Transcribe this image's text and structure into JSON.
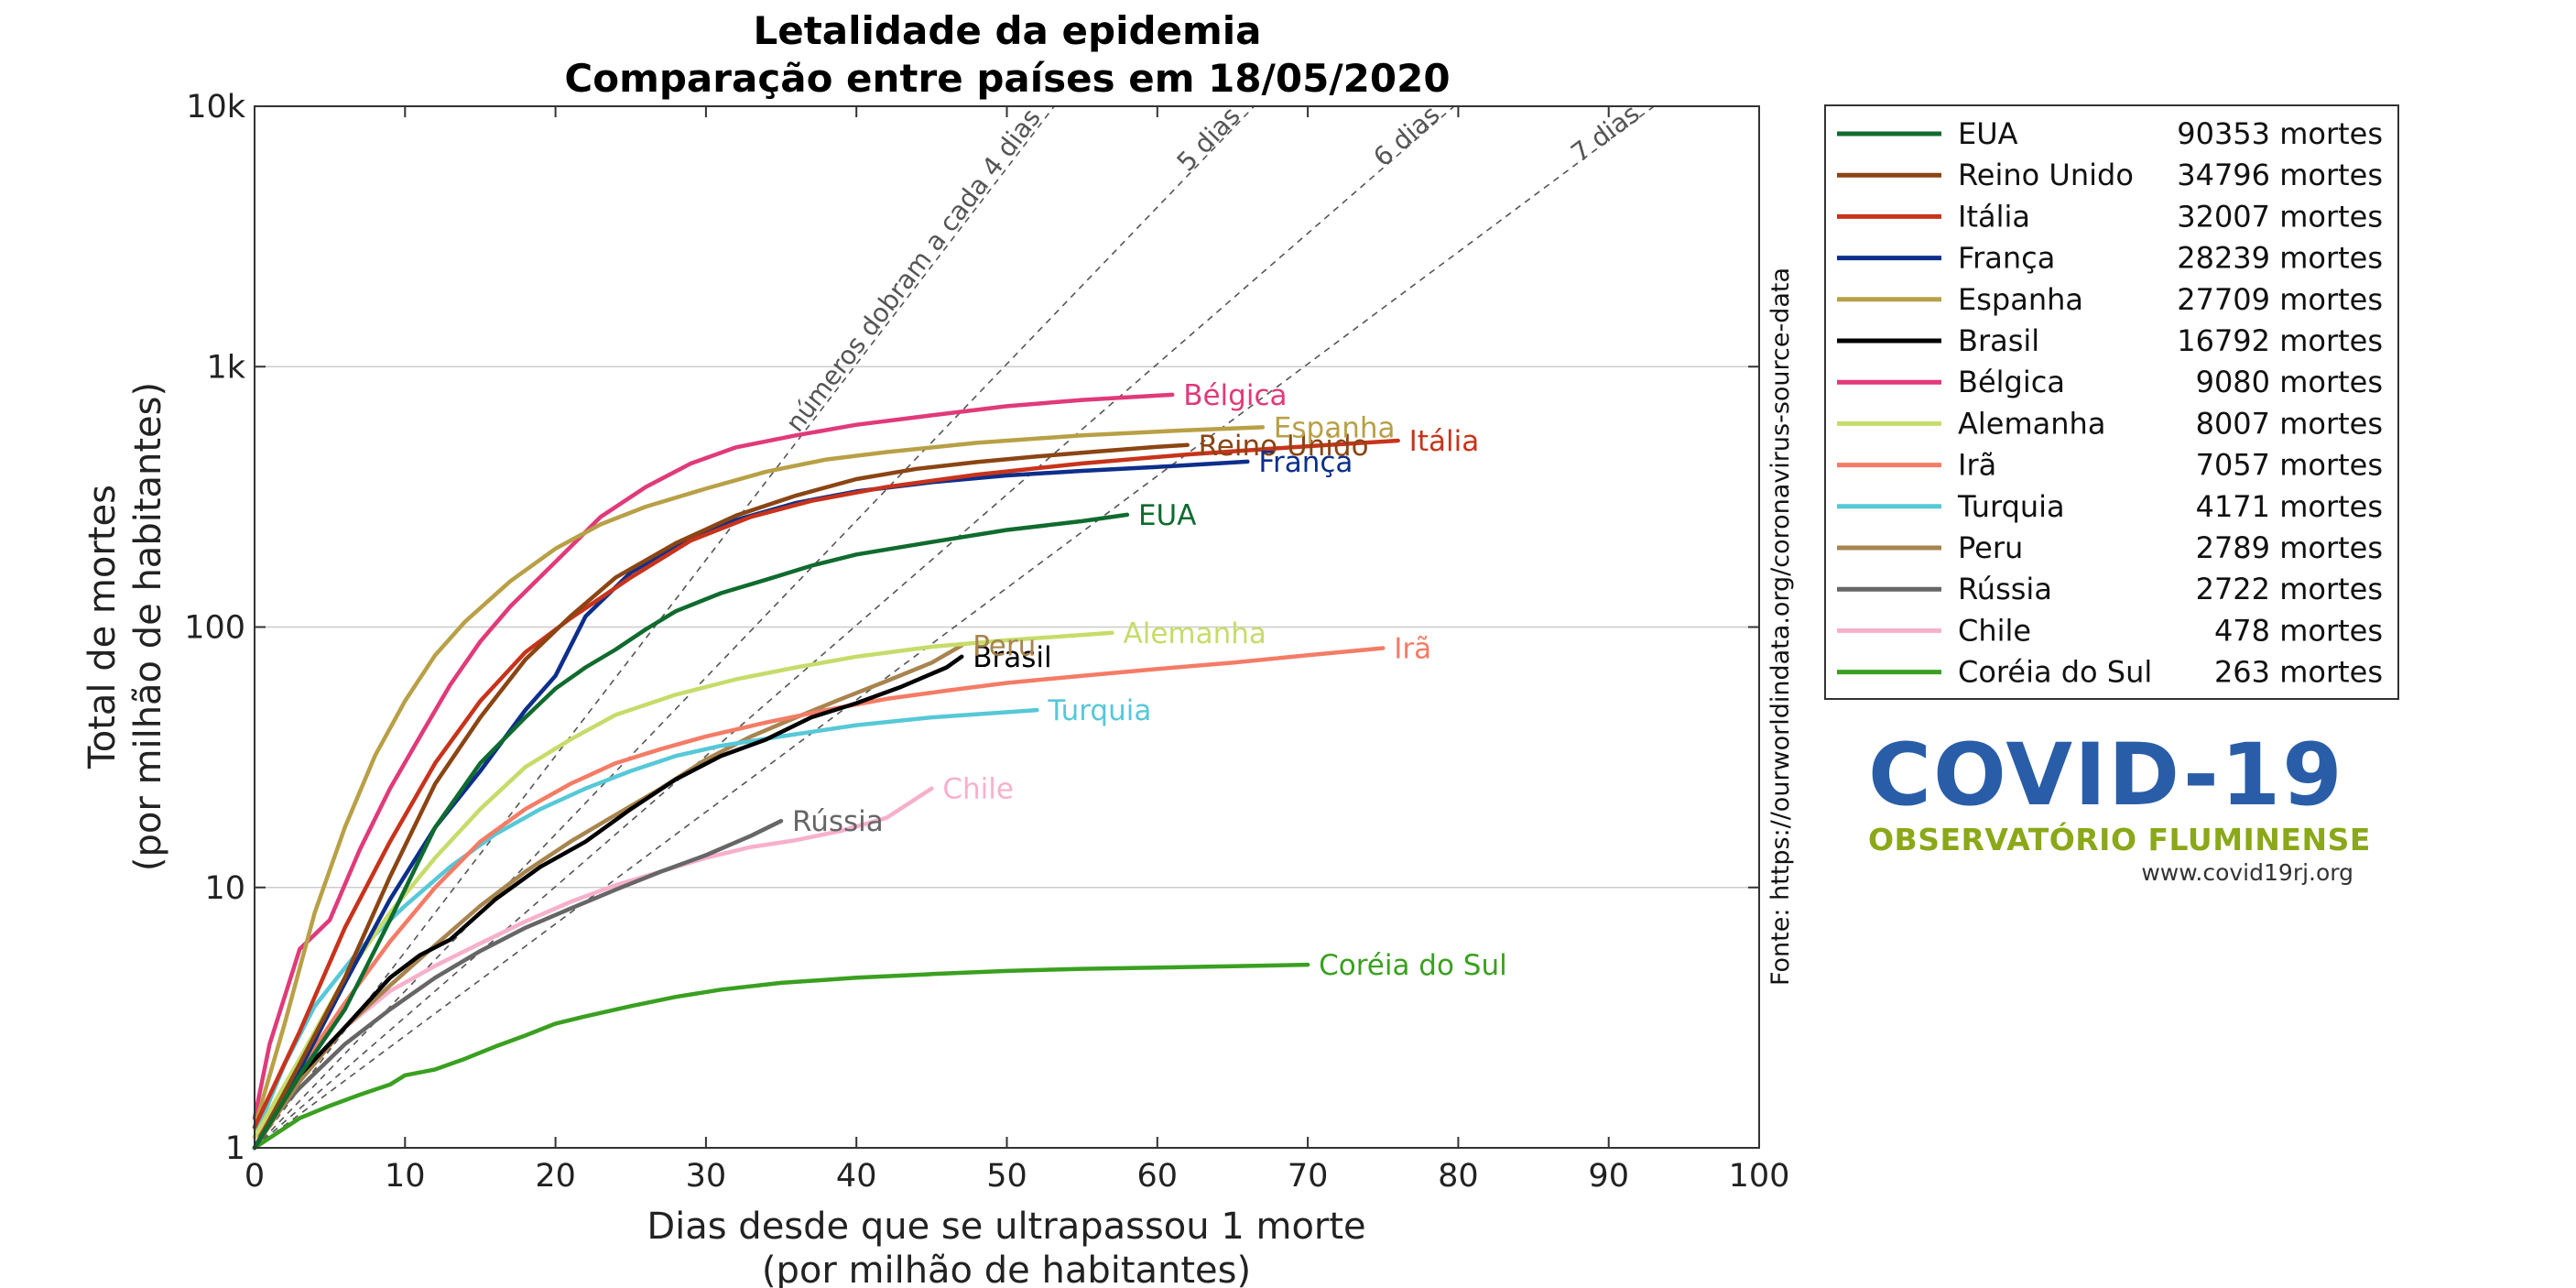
{
  "chart_data": {
    "type": "line",
    "title": "Letalidade da epidemia",
    "subtitle": "Comparação entre países em 18/05/2020",
    "xlabel": "Dias desde que se ultrapassou 1 morte",
    "xlabel2": "(por milhão de habitantes)",
    "ylabel": "Total de mortes",
    "ylabel2": "(por milhão de habitantes)",
    "xlim": [
      0,
      100
    ],
    "ylim": [
      1,
      10000
    ],
    "yscale": "log",
    "x_ticks": [
      0,
      10,
      20,
      30,
      40,
      50,
      60,
      70,
      80,
      90,
      100
    ],
    "y_ticks": [
      {
        "value": 1,
        "label": "1"
      },
      {
        "value": 10,
        "label": "10"
      },
      {
        "value": 100,
        "label": "100"
      },
      {
        "value": 1000,
        "label": "1k"
      },
      {
        "value": 10000,
        "label": "10k"
      }
    ],
    "grid": "horizontal",
    "legend_position": "right",
    "source": "Fonte: https://ourworldindata.org/coronavirus-source-data",
    "reference_lines": [
      {
        "label": "números dobram a cada 4 dias",
        "doubling_days": 4
      },
      {
        "label": "5 dias",
        "doubling_days": 5
      },
      {
        "label": "6 dias",
        "doubling_days": 6
      },
      {
        "label": "7 dias",
        "doubling_days": 7
      }
    ],
    "series": [
      {
        "name": "EUA",
        "deaths": "90353 mortes",
        "color": "#0f6b2e",
        "label": "EUA",
        "points": [
          [
            0,
            1
          ],
          [
            3,
            1.9
          ],
          [
            6,
            3.4
          ],
          [
            9,
            7.5
          ],
          [
            12,
            17
          ],
          [
            15,
            30
          ],
          [
            18,
            45
          ],
          [
            20,
            58
          ],
          [
            22,
            70
          ],
          [
            24,
            82
          ],
          [
            26,
            98
          ],
          [
            28,
            115
          ],
          [
            31,
            135
          ],
          [
            34,
            152
          ],
          [
            37,
            172
          ],
          [
            40,
            190
          ],
          [
            45,
            212
          ],
          [
            50,
            236
          ],
          [
            55,
            255
          ],
          [
            58,
            270
          ]
        ]
      },
      {
        "name": "Reino Unido",
        "deaths": "34796 mortes",
        "color": "#8b4513",
        "label": "Reino Unido",
        "points": [
          [
            0,
            1
          ],
          [
            3,
            2.1
          ],
          [
            6,
            4.5
          ],
          [
            9,
            11
          ],
          [
            12,
            25
          ],
          [
            15,
            45
          ],
          [
            18,
            75
          ],
          [
            21,
            110
          ],
          [
            24,
            155
          ],
          [
            28,
            210
          ],
          [
            32,
            268
          ],
          [
            36,
            320
          ],
          [
            40,
            370
          ],
          [
            44,
            405
          ],
          [
            48,
            430
          ],
          [
            52,
            452
          ],
          [
            56,
            472
          ],
          [
            60,
            492
          ],
          [
            62,
            500
          ]
        ]
      },
      {
        "name": "Itália",
        "deaths": "32007 mortes",
        "color": "#c8331b",
        "label": "Itália",
        "points": [
          [
            0,
            1.2
          ],
          [
            3,
            2.8
          ],
          [
            6,
            7
          ],
          [
            9,
            15
          ],
          [
            12,
            30
          ],
          [
            15,
            52
          ],
          [
            18,
            80
          ],
          [
            21,
            108
          ],
          [
            25,
            155
          ],
          [
            29,
            215
          ],
          [
            33,
            265
          ],
          [
            37,
            305
          ],
          [
            42,
            345
          ],
          [
            48,
            385
          ],
          [
            55,
            425
          ],
          [
            62,
            460
          ],
          [
            70,
            495
          ],
          [
            76,
            520
          ]
        ]
      },
      {
        "name": "França",
        "deaths": "28239 mortes",
        "color": "#0d2f8c",
        "label": "França",
        "points": [
          [
            0,
            1
          ],
          [
            3,
            2
          ],
          [
            6,
            4.3
          ],
          [
            9,
            9
          ],
          [
            12,
            17
          ],
          [
            15,
            28
          ],
          [
            18,
            48
          ],
          [
            20,
            65
          ],
          [
            22,
            110
          ],
          [
            25,
            162
          ],
          [
            28,
            205
          ],
          [
            32,
            258
          ],
          [
            36,
            300
          ],
          [
            40,
            332
          ],
          [
            45,
            360
          ],
          [
            50,
            382
          ],
          [
            55,
            398
          ],
          [
            60,
            412
          ],
          [
            66,
            432
          ]
        ]
      },
      {
        "name": "Espanha",
        "deaths": "27709 mortes",
        "color": "#b8a046",
        "label": "Espanha",
        "points": [
          [
            0,
            1.2
          ],
          [
            2,
            3
          ],
          [
            4,
            8
          ],
          [
            6,
            17
          ],
          [
            8,
            32
          ],
          [
            10,
            52
          ],
          [
            12,
            78
          ],
          [
            14,
            105
          ],
          [
            17,
            150
          ],
          [
            20,
            200
          ],
          [
            23,
            248
          ],
          [
            26,
            290
          ],
          [
            30,
            340
          ],
          [
            34,
            395
          ],
          [
            38,
            440
          ],
          [
            42,
            470
          ],
          [
            48,
            510
          ],
          [
            55,
            545
          ],
          [
            62,
            570
          ],
          [
            67,
            585
          ]
        ]
      },
      {
        "name": "Brasil",
        "deaths": "16792 mortes",
        "color": "#000000",
        "label": "Brasil",
        "points": [
          [
            0,
            1
          ],
          [
            3,
            1.9
          ],
          [
            6,
            2.9
          ],
          [
            9,
            4.5
          ],
          [
            11,
            5.5
          ],
          [
            13,
            6.3
          ],
          [
            16,
            9
          ],
          [
            19,
            12
          ],
          [
            22,
            15
          ],
          [
            25,
            20
          ],
          [
            28,
            26
          ],
          [
            31,
            32
          ],
          [
            34,
            37
          ],
          [
            37,
            45
          ],
          [
            40,
            51
          ],
          [
            43,
            59
          ],
          [
            46,
            70
          ],
          [
            47,
            77
          ]
        ]
      },
      {
        "name": "Bélgica",
        "deaths": "9080 mortes",
        "color": "#e03a7a",
        "label": "Bélgica",
        "points": [
          [
            0,
            1.3
          ],
          [
            1,
            2.5
          ],
          [
            3,
            5.8
          ],
          [
            5,
            7.5
          ],
          [
            7,
            14
          ],
          [
            9,
            24
          ],
          [
            11,
            38
          ],
          [
            13,
            60
          ],
          [
            15,
            88
          ],
          [
            17,
            120
          ],
          [
            20,
            178
          ],
          [
            23,
            265
          ],
          [
            26,
            345
          ],
          [
            29,
            425
          ],
          [
            32,
            490
          ],
          [
            36,
            545
          ],
          [
            40,
            598
          ],
          [
            45,
            650
          ],
          [
            50,
            705
          ],
          [
            55,
            745
          ],
          [
            61,
            780
          ]
        ]
      },
      {
        "name": "Alemanha",
        "deaths": "8007 mortes",
        "color": "#c6dc6a",
        "label": "Alemanha",
        "points": [
          [
            0,
            1.1
          ],
          [
            3,
            2.2
          ],
          [
            6,
            4.5
          ],
          [
            9,
            8
          ],
          [
            12,
            13
          ],
          [
            15,
            20
          ],
          [
            18,
            29
          ],
          [
            21,
            37
          ],
          [
            24,
            46
          ],
          [
            28,
            55
          ],
          [
            32,
            63
          ],
          [
            36,
            70
          ],
          [
            40,
            77
          ],
          [
            45,
            84
          ],
          [
            50,
            89
          ],
          [
            57,
            95
          ]
        ]
      },
      {
        "name": "Irã",
        "deaths": "7057 mortes",
        "color": "#f47c66",
        "label": "Irã",
        "points": [
          [
            0,
            1.1
          ],
          [
            3,
            2
          ],
          [
            6,
            3.6
          ],
          [
            9,
            6.2
          ],
          [
            12,
            10
          ],
          [
            15,
            15
          ],
          [
            18,
            20
          ],
          [
            21,
            25
          ],
          [
            24,
            30
          ],
          [
            27,
            34
          ],
          [
            30,
            38
          ],
          [
            34,
            43
          ],
          [
            38,
            48
          ],
          [
            42,
            53
          ],
          [
            46,
            57
          ],
          [
            50,
            61
          ],
          [
            55,
            65
          ],
          [
            60,
            69
          ],
          [
            65,
            73
          ],
          [
            70,
            78
          ],
          [
            75,
            83
          ]
        ]
      },
      {
        "name": "Turquia",
        "deaths": "4171 mortes",
        "color": "#56c8d8",
        "label": "Turquia",
        "points": [
          [
            0,
            1.1
          ],
          [
            2,
            2.1
          ],
          [
            4,
            3.5
          ],
          [
            7,
            5.8
          ],
          [
            10,
            8.5
          ],
          [
            13,
            12
          ],
          [
            16,
            16
          ],
          [
            19,
            20
          ],
          [
            22,
            24
          ],
          [
            25,
            28
          ],
          [
            28,
            32
          ],
          [
            31,
            35
          ],
          [
            35,
            38
          ],
          [
            40,
            42
          ],
          [
            45,
            45
          ],
          [
            52,
            48
          ]
        ]
      },
      {
        "name": "Peru",
        "deaths": "2789 mortes",
        "color": "#a8844e",
        "label": "Peru",
        "points": [
          [
            0,
            1
          ],
          [
            3,
            1.8
          ],
          [
            6,
            2.9
          ],
          [
            9,
            4.2
          ],
          [
            12,
            6
          ],
          [
            15,
            8.5
          ],
          [
            18,
            11.5
          ],
          [
            21,
            15
          ],
          [
            24,
            19
          ],
          [
            27,
            24
          ],
          [
            30,
            31
          ],
          [
            33,
            38
          ],
          [
            36,
            45
          ],
          [
            39,
            53
          ],
          [
            42,
            62
          ],
          [
            45,
            73
          ],
          [
            47,
            85
          ]
        ]
      },
      {
        "name": "Rússia",
        "deaths": "2722 mortes",
        "color": "#666666",
        "label": "Rússia",
        "points": [
          [
            0,
            1.1
          ],
          [
            3,
            1.7
          ],
          [
            6,
            2.5
          ],
          [
            9,
            3.4
          ],
          [
            12,
            4.5
          ],
          [
            15,
            5.7
          ],
          [
            18,
            7
          ],
          [
            21,
            8.3
          ],
          [
            24,
            9.8
          ],
          [
            27,
            11.5
          ],
          [
            30,
            13.3
          ],
          [
            33,
            15.8
          ],
          [
            35,
            18
          ]
        ]
      },
      {
        "name": "Chile",
        "deaths": "478 mortes",
        "color": "#f7b0cc",
        "label": "Chile",
        "points": [
          [
            0,
            1.1
          ],
          [
            3,
            1.9
          ],
          [
            6,
            2.9
          ],
          [
            9,
            4
          ],
          [
            12,
            5
          ],
          [
            15,
            6.1
          ],
          [
            18,
            7.4
          ],
          [
            21,
            8.8
          ],
          [
            24,
            10.2
          ],
          [
            27,
            11.5
          ],
          [
            30,
            13
          ],
          [
            33,
            14.3
          ],
          [
            36,
            15.2
          ],
          [
            39,
            16.5
          ],
          [
            42,
            18.5
          ],
          [
            45,
            24
          ]
        ]
      },
      {
        "name": "Coréia do Sul",
        "deaths": "263 mortes",
        "color": "#3aa020",
        "label": "Coréia do Sul",
        "points": [
          [
            0,
            1
          ],
          [
            3,
            1.3
          ],
          [
            5,
            1.45
          ],
          [
            7,
            1.6
          ],
          [
            9,
            1.75
          ],
          [
            10,
            1.9
          ],
          [
            12,
            2.0
          ],
          [
            14,
            2.2
          ],
          [
            16,
            2.45
          ],
          [
            18,
            2.7
          ],
          [
            20,
            3.0
          ],
          [
            22,
            3.2
          ],
          [
            25,
            3.5
          ],
          [
            28,
            3.8
          ],
          [
            31,
            4.05
          ],
          [
            35,
            4.3
          ],
          [
            40,
            4.5
          ],
          [
            45,
            4.65
          ],
          [
            50,
            4.78
          ],
          [
            55,
            4.87
          ],
          [
            60,
            4.92
          ],
          [
            65,
            4.98
          ],
          [
            70,
            5.05
          ]
        ]
      }
    ]
  },
  "logo": {
    "title": "COVID-19",
    "subtitle": "OBSERVATÓRIO FLUMINENSE",
    "url": "www.covid19rj.org"
  }
}
